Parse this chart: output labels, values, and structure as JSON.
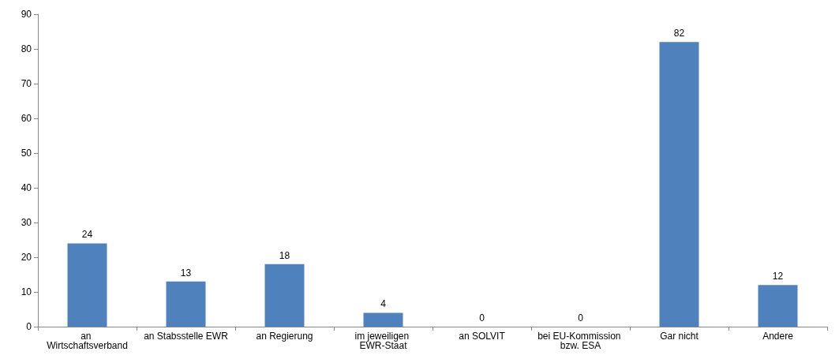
{
  "chart_data": {
    "type": "bar",
    "categories": [
      "an Wirtschaftsverband",
      "an Stabsstelle EWR",
      "an Regierung",
      "im jeweiligen EWR-Staat",
      "an SOLVIT",
      "bei EU-Kommission bzw. ESA",
      "Gar nicht",
      "Andere"
    ],
    "values": [
      24,
      13,
      18,
      4,
      0,
      0,
      82,
      12
    ],
    "color": "#4f81bd",
    "ylim": [
      0,
      90
    ],
    "yticks": [
      0,
      10,
      20,
      30,
      40,
      50,
      60,
      70,
      80,
      90
    ],
    "grid": false,
    "data_labels": true
  }
}
